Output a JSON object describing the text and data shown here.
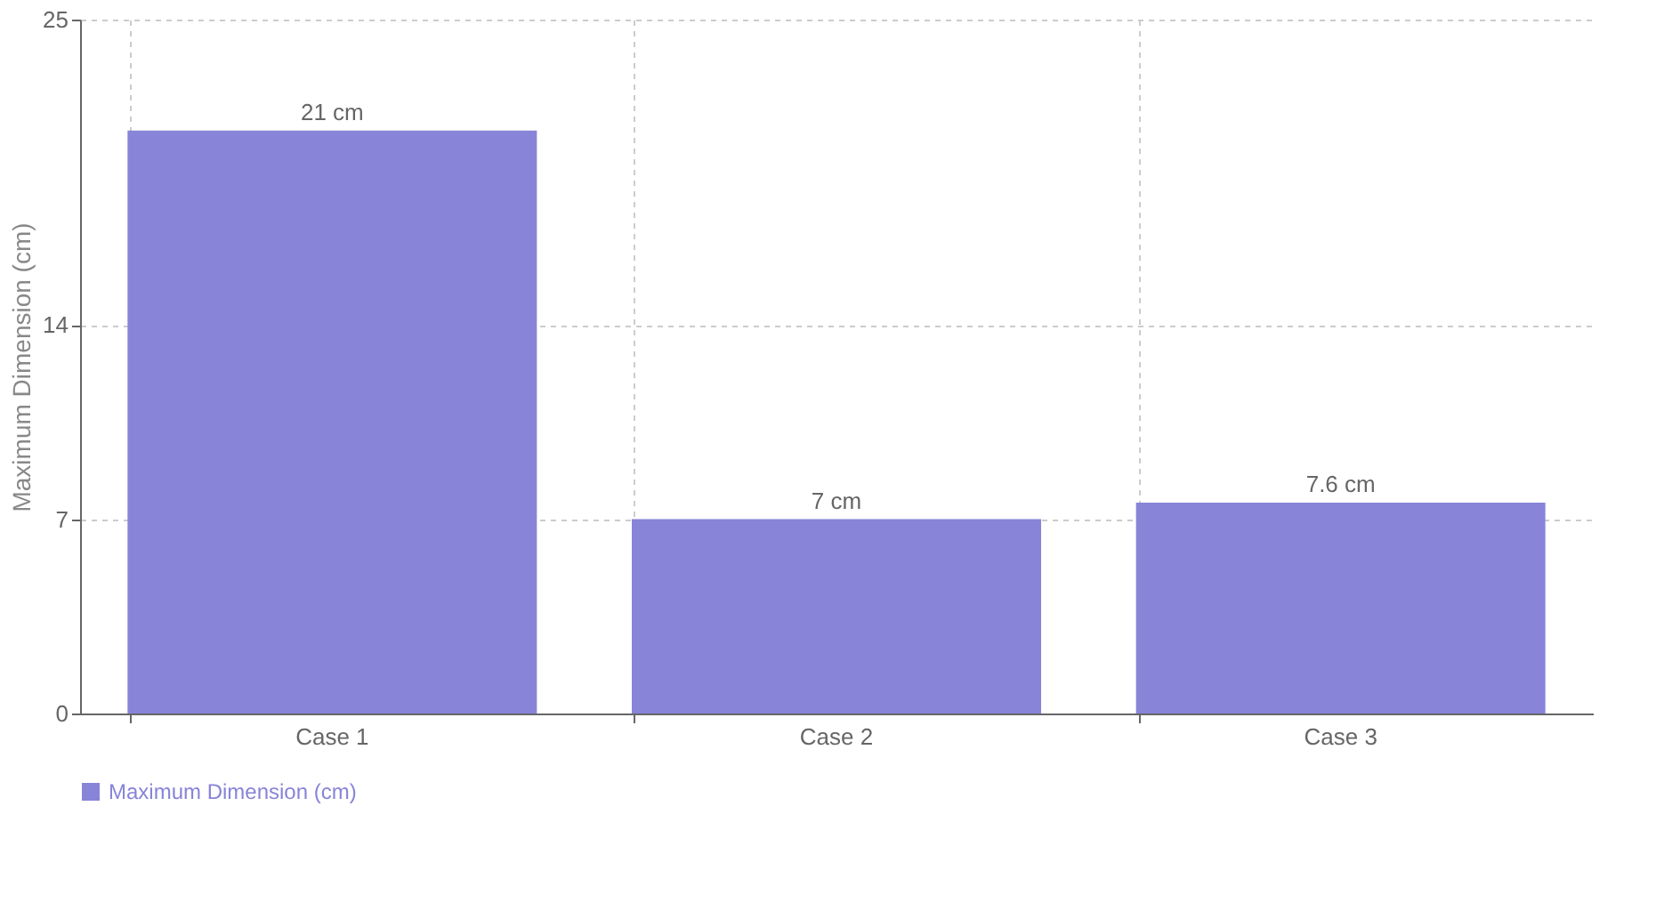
{
  "chart_data": {
    "type": "bar",
    "ylabel": "Maximum Dimension (cm)",
    "categories": [
      "Case 1",
      "Case 2",
      "Case 3"
    ],
    "series": [
      {
        "name": "Maximum Dimension (cm)",
        "color": "#8884d8",
        "values": [
          21,
          7,
          7.6
        ],
        "value_labels": [
          "21 cm",
          "7 cm",
          "7.6 cm"
        ]
      }
    ],
    "ylim": [
      0,
      25
    ],
    "yticks": [
      0,
      7,
      14,
      25
    ],
    "grid": true,
    "legend": "bottom"
  }
}
